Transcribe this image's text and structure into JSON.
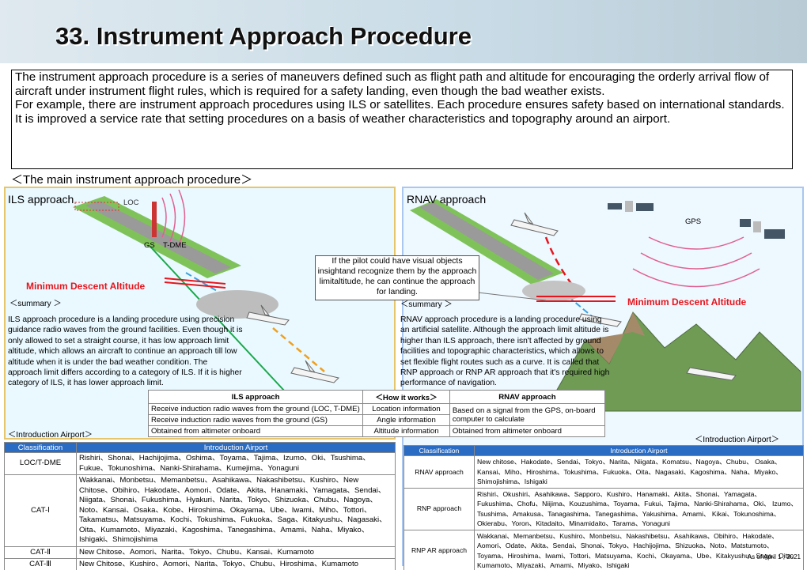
{
  "header": {
    "title": "33. Instrument Approach Procedure"
  },
  "intro": {
    "paragraphs": [
      " The instrument approach procedure is a series of maneuvers defined such as flight path and  altitude for encouraging the orderly arrival flow of aircraft under instrument flight rules, which is required for a safety landing, even though the bad weather exists.",
      " For example, there are instrument approach procedures using ILS or satellites. Each procedure ensures safety based on international standards. It is improved a service rate that setting procedures on a basis of weather characteristics and topography around an airport."
    ]
  },
  "section_heading": "＜The main instrument approach procedure＞",
  "ils": {
    "title": "ILS approach",
    "labels": {
      "loc": "LOC",
      "gs": "GS",
      "tdme": "T-DME"
    },
    "mda": "Minimum Descent Altitude",
    "summary_heading": "＜summary ＞",
    "summary": "ILS approach procedure is a landing procedure using precision guidance radio waves from the ground facilities. Even though it is only allowed to set a straight course, it has low approach limit altitude, which allows an aircraft to continue an approach till low altitude when it is under the bad weather condition. The approach limit differs according to a category of ILS. If it is higher category of ILS, it has lower approach limit."
  },
  "rnav": {
    "title": "RNAV approach",
    "gps": "GPS",
    "callout": "If the pilot could have visual objects insightand recognize them by the approach limitaltitude, he can continue the approach for landing.",
    "mda": "Minimum Descent Altitude",
    "summary_heading": "＜summary ＞",
    "summary": "RNAV approach procedure is a landing procedure using an artificial satellite. Although the approach limit altitude is higher than ILS approach, there isn't affected by ground facilities and topographic characteristics, which allows to set flexible flight routes such as a curve. It is called that RNP approach or RNP AR approach that it's required high performance of navigation."
  },
  "comparison": {
    "header": [
      "ILS approach",
      "＜How it works＞",
      "RNAV approach"
    ],
    "rows": [
      [
        "Receive induction radio waves from   the ground (LOC, T-DME)",
        "Location information",
        "Based on a signal from the GPS, on-board computer to calculate"
      ],
      [
        "Receive induction radio waves from the ground (GS)",
        "Angle information"
      ],
      [
        "Obtained from altimeter onboard",
        "Altitude information",
        "Obtained from altimeter onboard"
      ]
    ]
  },
  "airports_left": {
    "heading": "＜Introduction Airport＞",
    "header": [
      "Classification",
      "Introduction Airport"
    ],
    "rows": [
      [
        "LOC/T-DME",
        "Rishiri、Shonai、Hachijojima、Oshima、Toyama、Tajima、Izumo、Oki、Tsushima、Fukue、Tokunoshima、Nanki-Shirahama、Kumejima、Yonaguni"
      ],
      [
        "CAT-Ⅰ",
        "Wakkanai、Monbetsu、Memanbetsu、Asahikawa、Nakashibetsu、Kushiro、New Chitose、Obihiro、Hakodate、Aomori、Odate、 Akita、Hanamaki、Yamagata、Sendai、Niigata、Shonai、Fukushima、Hyakuri、Narita、Tokyo、Shizuoka、Chubu、Nagoya、Noto、Kansai、Osaka、Kobe、Hiroshima、Okayama、Ube、Iwami、Miho、Tottori、Takamatsu、Matsuyama、Kochi、Tokushima、Fukuoka、Saga、Kitakyushu、Nagasaki、Oita、Kumamoto、Miyazaki、Kagoshima、Tanegashima、Amami、Naha、Miyako、Ishigaki、Shimojishima"
      ],
      [
        "CAT-Ⅱ",
        "New Chitose、Aomori、Narita、Tokyo、Chubu、Kansai、Kumamoto"
      ],
      [
        "CAT-Ⅲ",
        "New Chitose、Kushiro、Aomori、Narita、Tokyo、Chubu、Hiroshima、Kumamoto"
      ]
    ]
  },
  "airports_right": {
    "heading": "＜Introduction Airport＞",
    "header": [
      "Classification",
      "Introduction Airport"
    ],
    "rows": [
      [
        "RNAV approach",
        "New chitose、Hakodate、Sendai、Tokyo、Narita、Niigata、Komatsu、Nagoya、Chubu、 Osaka、Kansai、Miho、Hiroshima、Tokushima、Fukuoka、Oita、Nagasaki、Kagoshima、Naha、Miyako、Shimojishima、Ishigaki"
      ],
      [
        "RNP approach",
        "Rishiri、Okushiri、Asahikawa、Sapporo、Kushiro、Hanamaki、Akita、Shonai、Yamagata、Fukushima、Chofu、Niijima、Kouzushima、Toyama、Fukui、Tajima、Nanki-Shirahama、Oki、 Izumo、Tsushima、Amakusa、Tanagashima、Tanegashima、Yakushima、Amami、 Kikai、Tokunoshima、Okierabu、Yoron、Kitadaito、Minamidaito、Tarama、Yonaguni"
      ],
      [
        "RNP AR approach",
        "Wakkanai、Memanbetsu、Kushiro、Monbetsu、Nakashibetsu、Asahikawa、Obihiro、Hakodate、Aomori、Odate、Akita、Sendai、Shonai、Tokyo、Hachijojima、Shizuoka、Noto、Matstumoto、Toyama、Hiroshima、Iwami、Tottori、Matsuyama、Kochi、Okayama、Ube、Kitakyushu、Saga、Oita、Kumamoto、Miyazaki、Amami、Miyako、Ishigaki"
      ]
    ],
    "note": "As of April 1 , 2021"
  }
}
